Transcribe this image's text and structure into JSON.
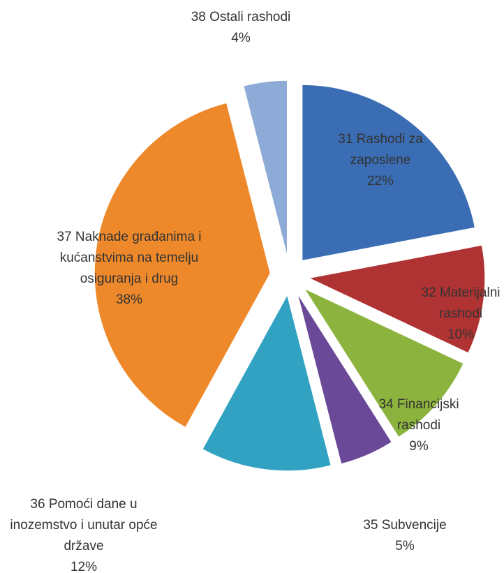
{
  "chart_data": {
    "type": "pie",
    "categories": [
      "31 Rashodi za zaposlene",
      "32 Materijalni rashodi",
      "34 Financijski rashodi",
      "35 Subvencije",
      "36 Pomoći dane u inozemstvo i unutar opće države",
      "37 Naknade građanima i kućanstvima na temelju osiguranja i drug",
      "38 Ostali rashodi"
    ],
    "values": [
      22,
      10,
      9,
      5,
      12,
      38,
      4
    ],
    "value_labels": [
      "22%",
      "10%",
      "9%",
      "5%",
      "12%",
      "38%",
      "4%"
    ],
    "colors": [
      "#3a6db3",
      "#b03333",
      "#8bb33d",
      "#6a4a98",
      "#31a2c2",
      "#ee892b",
      "#8eaad6"
    ]
  }
}
